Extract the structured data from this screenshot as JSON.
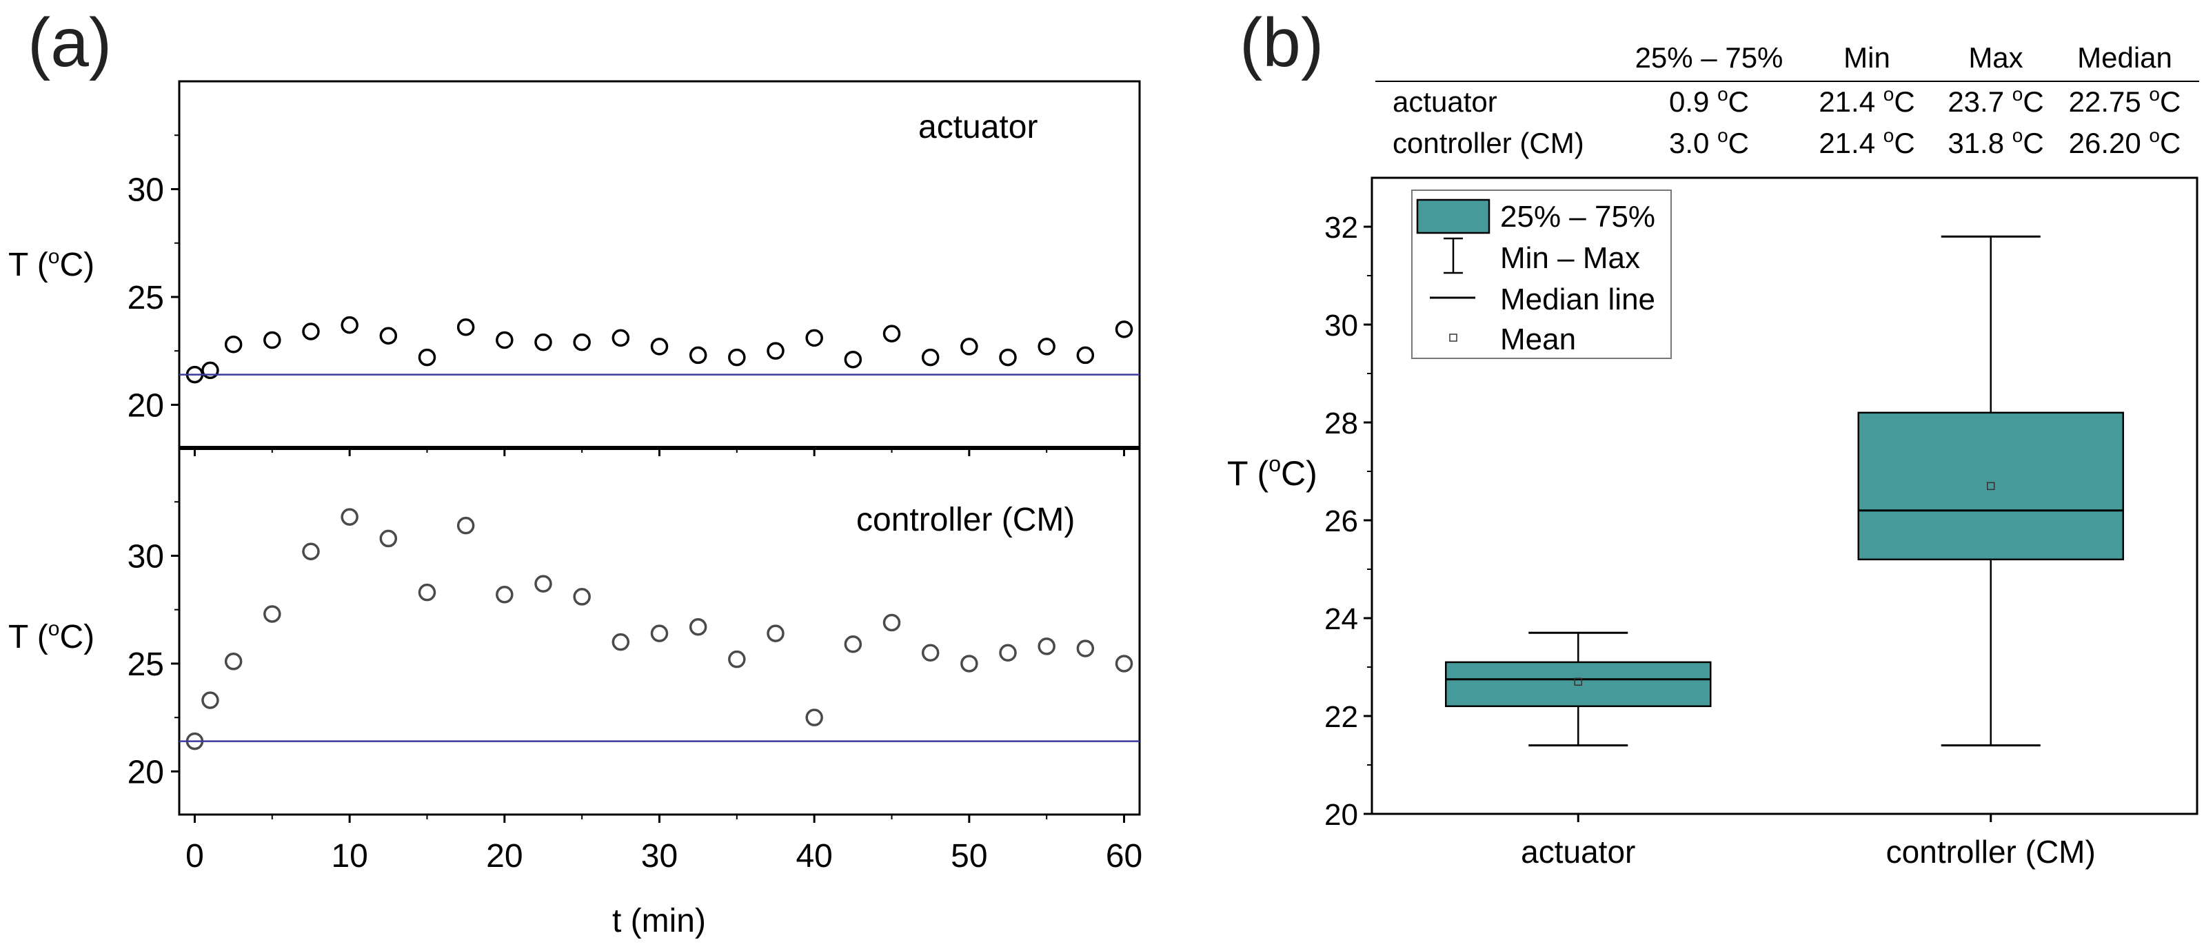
{
  "chart_data": [
    {
      "panel": "(a)",
      "type": "scatter",
      "subplots": [
        {
          "name": "actuator",
          "annotation": "actuator",
          "ylabel_main": "T (",
          "ylabel_sup": "o",
          "ylabel_end": "C)",
          "ylim": [
            18,
            35
          ],
          "yticks": [
            20,
            25,
            30
          ],
          "yminor": [
            22.5,
            27.5,
            32.5
          ],
          "reference_line": 21.4,
          "line_color": "#3a3aa0",
          "marker_color": "#000000",
          "x": [
            0,
            1,
            2.5,
            5,
            7.5,
            10,
            12.5,
            15,
            17.5,
            20,
            22.5,
            25,
            27.5,
            30,
            32.5,
            35,
            37.5,
            40,
            42.5,
            45,
            47.5,
            50,
            52.5,
            55,
            57.5,
            60
          ],
          "y": [
            21.4,
            21.6,
            22.8,
            23.0,
            23.4,
            23.7,
            23.2,
            22.2,
            23.6,
            23.0,
            22.9,
            22.9,
            23.1,
            22.7,
            22.3,
            22.2,
            22.5,
            23.1,
            22.1,
            23.3,
            22.2,
            22.7,
            22.2,
            22.7,
            22.3,
            23.5
          ]
        },
        {
          "name": "controller",
          "annotation": "controller (CM)",
          "ylabel_main": "T (",
          "ylabel_sup": "o",
          "ylabel_end": "C)",
          "ylim": [
            18,
            35
          ],
          "yticks": [
            20,
            25,
            30
          ],
          "yminor": [
            22.5,
            27.5,
            32.5
          ],
          "reference_line": 21.4,
          "line_color": "#3a3aa0",
          "marker_color": "#4a4a4a",
          "x": [
            0,
            1,
            2.5,
            5,
            7.5,
            10,
            12.5,
            15,
            17.5,
            20,
            22.5,
            25,
            27.5,
            30,
            32.5,
            35,
            37.5,
            40,
            42.5,
            45,
            47.5,
            50,
            52.5,
            55,
            57.5,
            60
          ],
          "y": [
            21.4,
            23.3,
            25.1,
            27.3,
            30.2,
            31.8,
            30.8,
            28.3,
            31.4,
            28.2,
            28.7,
            28.1,
            26.0,
            26.4,
            26.7,
            25.2,
            26.4,
            22.5,
            25.9,
            26.9,
            25.5,
            25.0,
            25.5,
            25.8,
            25.7,
            25.0
          ]
        }
      ],
      "xlabel": "t (min)",
      "xlim": [
        -1,
        61
      ],
      "xticks": [
        0,
        10,
        20,
        30,
        40,
        50,
        60
      ],
      "xminor": [
        5,
        15,
        25,
        35,
        45,
        55
      ]
    },
    {
      "panel": "(b)",
      "type": "box",
      "ylabel_main": "T (",
      "ylabel_sup": "o",
      "ylabel_end": "C)",
      "ylim": [
        20,
        33
      ],
      "yticks": [
        20,
        22,
        24,
        26,
        28,
        30,
        32
      ],
      "yminor": [
        21,
        23,
        25,
        27,
        29,
        31
      ],
      "box_color": "#469a9a",
      "categories": [
        "actuator",
        "controller (CM)"
      ],
      "boxes": [
        {
          "name": "actuator",
          "q1": 22.2,
          "q3": 23.1,
          "min": 21.4,
          "max": 23.7,
          "median": 22.75,
          "mean": 22.7
        },
        {
          "name": "controller (CM)",
          "q1": 25.2,
          "q3": 28.2,
          "min": 21.4,
          "max": 31.8,
          "median": 26.2,
          "mean": 26.7
        }
      ],
      "legend": {
        "placement": "top-left",
        "items": [
          {
            "kind": "box",
            "label": "25% – 75%"
          },
          {
            "kind": "whisker",
            "label": "Min – Max"
          },
          {
            "kind": "line",
            "label": "Median line"
          },
          {
            "kind": "mean",
            "label": "Mean"
          }
        ]
      },
      "stats_table": {
        "headers": [
          "",
          "25% – 75%",
          "Min",
          "Max",
          "Median"
        ],
        "rows": [
          {
            "label": "actuator",
            "cells": [
              "0.9",
              "21.4",
              "23.7",
              "22.75"
            ]
          },
          {
            "label": "controller (CM)",
            "cells": [
              "3.0",
              "21.4",
              "31.8",
              "26.20"
            ]
          }
        ],
        "unit_sup": "o",
        "unit_end": "C"
      }
    }
  ]
}
